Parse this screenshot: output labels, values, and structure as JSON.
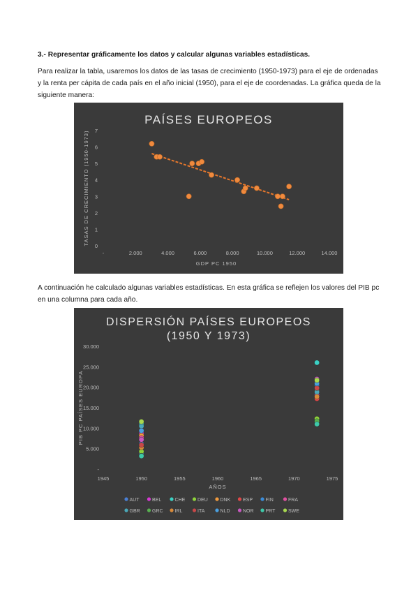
{
  "section_heading": "3.- Representar gráficamente los datos y calcular algunas variables estadísticas.",
  "paragraph1": "Para realizar la tabla, usaremos los datos de las tasas de crecimiento (1950-1973) para el eje de ordenadas y la renta per cápita de cada país en el año inicial (1950), para el eje de coordenadas. La gráfica queda de la siguiente manera:",
  "paragraph2": "A continuación he calculado algunas variables estadísticas. En esta gráfica se reflejen los valores del PIB pc en una columna para cada año.",
  "chart_data": [
    {
      "type": "scatter",
      "title": "PAÍSES EUROPEOS",
      "xlabel": "GDP PC 1950",
      "ylabel": "TASAS DE CRECIMIENTO (1950-1973)",
      "xlim": [
        0,
        14000
      ],
      "ylim": [
        0,
        7
      ],
      "xticks": [
        "-",
        "2.000",
        "4.000",
        "6.000",
        "8.000",
        "10.000",
        "12.000",
        "14.000"
      ],
      "yticks": [
        "0",
        "1",
        "2",
        "3",
        "4",
        "5",
        "6",
        "7"
      ],
      "point_color": "#f08a3e",
      "trendline": {
        "x": [
          3000,
          11500
        ],
        "y": [
          5.6,
          2.8
        ],
        "color": "#e8782c"
      },
      "points": [
        {
          "x": 3000,
          "y": 6.2
        },
        {
          "x": 3300,
          "y": 5.4
        },
        {
          "x": 3500,
          "y": 5.4
        },
        {
          "x": 5300,
          "y": 3.0
        },
        {
          "x": 5500,
          "y": 5.0
        },
        {
          "x": 5900,
          "y": 5.0
        },
        {
          "x": 6100,
          "y": 5.1
        },
        {
          "x": 6700,
          "y": 4.3
        },
        {
          "x": 8300,
          "y": 4.0
        },
        {
          "x": 8700,
          "y": 3.3
        },
        {
          "x": 8800,
          "y": 3.5
        },
        {
          "x": 9500,
          "y": 3.5
        },
        {
          "x": 10800,
          "y": 3.0
        },
        {
          "x": 11000,
          "y": 2.4
        },
        {
          "x": 11100,
          "y": 3.0
        },
        {
          "x": 11500,
          "y": 3.6
        }
      ]
    },
    {
      "type": "scatter",
      "title": "DISPERSIÓN PAÍSES EUROPEOS (1950 Y 1973)",
      "title_lines": [
        "DISPERSIÓN PAÍSES EUROPEOS",
        "(1950 Y 1973)"
      ],
      "xlabel": "AÑOS",
      "ylabel": "PIB PC PAÍSES EUROPA",
      "xlim": [
        1945,
        1975
      ],
      "ylim": [
        0,
        30000
      ],
      "xticks": [
        "1945",
        "1950",
        "1955",
        "1960",
        "1965",
        "1970",
        "1975"
      ],
      "yticks": [
        "-",
        "5.000",
        "10.000",
        "15.000",
        "20.000",
        "25.000",
        "30.000"
      ],
      "legend_position": "bottom",
      "series": [
        {
          "name": "AUT",
          "color": "#4a7fd4",
          "x": [
            1950,
            1973
          ],
          "y": [
            3700,
            11200
          ]
        },
        {
          "name": "BEL",
          "color": "#d63ad3",
          "x": [
            1950,
            1973
          ],
          "y": [
            8800,
            18100
          ]
        },
        {
          "name": "CHE",
          "color": "#3bd1c4",
          "x": [
            1950,
            1973
          ],
          "y": [
            11100,
            26000
          ]
        },
        {
          "name": "DEU",
          "color": "#8ed23b",
          "x": [
            1950,
            1973
          ],
          "y": [
            4300,
            12300
          ]
        },
        {
          "name": "DNK",
          "color": "#f09a3e",
          "x": [
            1950,
            1973
          ],
          "y": [
            8200,
            19000
          ]
        },
        {
          "name": "ESP",
          "color": "#e04848",
          "x": [
            1950,
            1973
          ],
          "y": [
            5700,
            17200
          ]
        },
        {
          "name": "FIN",
          "color": "#3a8cd8",
          "x": [
            1950,
            1973
          ],
          "y": [
            6200,
            20500
          ]
        },
        {
          "name": "FRA",
          "color": "#e050a0",
          "x": [
            1950,
            1973
          ],
          "y": [
            7600,
            21200
          ]
        },
        {
          "name": "GBR",
          "color": "#4aa8b8",
          "x": [
            1950,
            1973
          ],
          "y": [
            10500,
            18800
          ]
        },
        {
          "name": "GRC",
          "color": "#58b050",
          "x": [
            1950,
            1973
          ],
          "y": [
            3300,
            11700
          ]
        },
        {
          "name": "IRL",
          "color": "#d88a3a",
          "x": [
            1950,
            1973
          ],
          "y": [
            5300,
            17700
          ]
        },
        {
          "name": "ITA",
          "color": "#c84848",
          "x": [
            1950,
            1973
          ],
          "y": [
            5900,
            19800
          ]
        },
        {
          "name": "NLD",
          "color": "#4aa0e0",
          "x": [
            1950,
            1973
          ],
          "y": [
            9400,
            20900
          ]
        },
        {
          "name": "NOR",
          "color": "#c858c0",
          "x": [
            1950,
            1973
          ],
          "y": [
            7200,
            22000
          ]
        },
        {
          "name": "PRT",
          "color": "#3ec8a8",
          "x": [
            1950,
            1973
          ],
          "y": [
            3200,
            11000
          ]
        },
        {
          "name": "SWE",
          "color": "#a8d850",
          "x": [
            1950,
            1973
          ],
          "y": [
            11600,
            21700
          ]
        }
      ]
    }
  ]
}
